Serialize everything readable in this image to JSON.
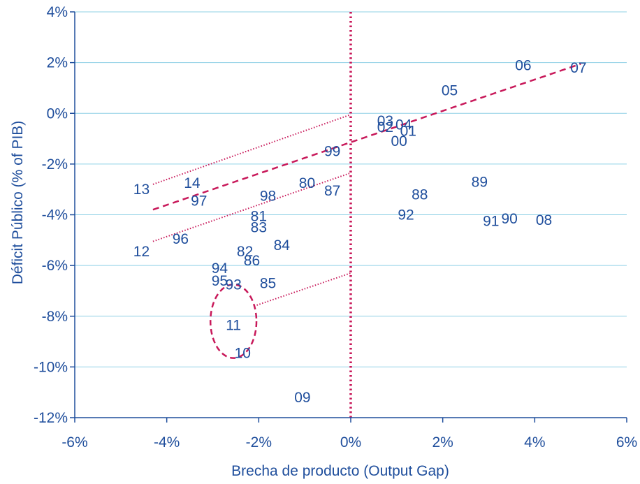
{
  "chart_data": {
    "type": "scatter",
    "xlabel": "Brecha de producto (Output Gap)",
    "ylabel": "Déficit Público  (% of PIB)",
    "xlim": [
      -6,
      6
    ],
    "ylim": [
      -12,
      4
    ],
    "x_ticks": [
      "-6%",
      "-4%",
      "-2%",
      "0%",
      "2%",
      "4%",
      "6%"
    ],
    "y_ticks": [
      "4%",
      "2%",
      "0%",
      "-2%",
      "-4%",
      "-6%",
      "-8%",
      "-10%",
      "-12%"
    ],
    "grid": "horizontal",
    "point_color": "#1f4e9c",
    "line_color": "#c8195a",
    "points": [
      {
        "label": "07",
        "x": 4.95,
        "y": 1.8
      },
      {
        "label": "06",
        "x": 3.75,
        "y": 1.9
      },
      {
        "label": "05",
        "x": 2.15,
        "y": 0.9
      },
      {
        "label": "03",
        "x": 0.75,
        "y": -0.3
      },
      {
        "label": "04",
        "x": 1.15,
        "y": -0.45
      },
      {
        "label": "02",
        "x": 0.75,
        "y": -0.55
      },
      {
        "label": "01",
        "x": 1.25,
        "y": -0.7
      },
      {
        "label": "00",
        "x": 1.05,
        "y": -1.1
      },
      {
        "label": "99",
        "x": -0.4,
        "y": -1.5
      },
      {
        "label": "89",
        "x": 2.8,
        "y": -2.7
      },
      {
        "label": "88",
        "x": 1.5,
        "y": -3.2
      },
      {
        "label": "92",
        "x": 1.2,
        "y": -4.0
      },
      {
        "label": "90",
        "x": 3.45,
        "y": -4.15
      },
      {
        "label": "91",
        "x": 3.05,
        "y": -4.25
      },
      {
        "label": "08",
        "x": 4.2,
        "y": -4.2
      },
      {
        "label": "13",
        "x": -4.55,
        "y": -3.0
      },
      {
        "label": "14",
        "x": -3.45,
        "y": -2.75
      },
      {
        "label": "80",
        "x": -0.95,
        "y": -2.75
      },
      {
        "label": "87",
        "x": -0.4,
        "y": -3.05
      },
      {
        "label": "98",
        "x": -1.8,
        "y": -3.25
      },
      {
        "label": "97",
        "x": -3.3,
        "y": -3.45
      },
      {
        "label": "81",
        "x": -2.0,
        "y": -4.05
      },
      {
        "label": "83",
        "x": -2.0,
        "y": -4.5
      },
      {
        "label": "96",
        "x": -3.7,
        "y": -4.95
      },
      {
        "label": "84",
        "x": -1.5,
        "y": -5.2
      },
      {
        "label": "12",
        "x": -4.55,
        "y": -5.45
      },
      {
        "label": "82",
        "x": -2.3,
        "y": -5.45
      },
      {
        "label": "86",
        "x": -2.15,
        "y": -5.8
      },
      {
        "label": "94",
        "x": -2.85,
        "y": -6.1
      },
      {
        "label": "95",
        "x": -2.85,
        "y": -6.6
      },
      {
        "label": "93",
        "x": -2.55,
        "y": -6.75
      },
      {
        "label": "85",
        "x": -1.8,
        "y": -6.7
      },
      {
        "label": "11",
        "x": -2.55,
        "y": -8.35
      },
      {
        "label": "10",
        "x": -2.35,
        "y": -9.45
      },
      {
        "label": "09",
        "x": -1.05,
        "y": -11.2
      }
    ],
    "vertical_reference": {
      "x": 0
    },
    "dashed_trend": {
      "from": [
        -4.3,
        -3.8
      ],
      "to": [
        5.0,
        1.95
      ]
    },
    "dotted_band": [
      {
        "from": [
          -4.3,
          -2.8
        ],
        "to": [
          0.0,
          -0.05
        ]
      },
      {
        "from": [
          -4.3,
          -5.05
        ],
        "to": [
          0.0,
          -2.35
        ]
      },
      {
        "from": [
          -2.1,
          -7.6
        ],
        "to": [
          0.0,
          -6.3
        ]
      }
    ],
    "highlight_ellipse": {
      "cx": -2.55,
      "cy": -8.2,
      "rx": 0.5,
      "ry": 1.45
    }
  }
}
